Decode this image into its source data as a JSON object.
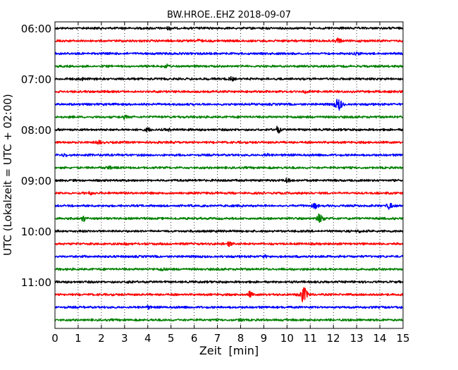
{
  "chart_data": {
    "type": "line",
    "title": "BW.HROE..EHZ 2018-09-07",
    "xlabel": "Zeit  [min]",
    "ylabel": "UTC (Lokalzeit = UTC + 02:00)",
    "xlim": [
      0,
      15
    ],
    "x_ticks": [
      "0",
      "1",
      "2",
      "3",
      "4",
      "5",
      "6",
      "7",
      "8",
      "9",
      "10",
      "11",
      "12",
      "13",
      "14",
      "15"
    ],
    "y_tick_labels": [
      "06:00",
      "07:00",
      "08:00",
      "09:00",
      "10:00",
      "11:00"
    ],
    "grid": "vertical dotted",
    "color_cycle": [
      "#000000",
      "#ff0000",
      "#0000ff",
      "#008000"
    ],
    "traces_start": "06:00",
    "trace_interval_min": 15,
    "trace_count": 24,
    "series": [
      {
        "start": "06:00",
        "events": [
          {
            "x": 4.9,
            "amp": 1.2
          }
        ]
      },
      {
        "start": "06:15",
        "events": [
          {
            "x": 6.2,
            "amp": 1.2
          },
          {
            "x": 12.2,
            "amp": 2.4
          }
        ]
      },
      {
        "start": "06:30",
        "events": [
          {
            "x": 13.0,
            "amp": 1.1
          }
        ]
      },
      {
        "start": "06:45",
        "events": [
          {
            "x": 4.8,
            "amp": 1.1
          }
        ]
      },
      {
        "start": "07:00",
        "events": [
          {
            "x": 1.1,
            "amp": 1.3
          },
          {
            "x": 7.6,
            "amp": 1.6
          }
        ]
      },
      {
        "start": "07:15",
        "events": [
          {
            "x": 10.8,
            "amp": 1.0
          }
        ]
      },
      {
        "start": "07:30",
        "events": [
          {
            "x": 12.2,
            "amp": 5.0
          }
        ]
      },
      {
        "start": "07:45",
        "events": [
          {
            "x": 3.0,
            "amp": 1.2
          }
        ]
      },
      {
        "start": "08:00",
        "events": [
          {
            "x": 4.0,
            "amp": 1.4
          },
          {
            "x": 4.9,
            "amp": 1.1
          },
          {
            "x": 9.6,
            "amp": 2.6
          }
        ]
      },
      {
        "start": "08:15",
        "events": [
          {
            "x": 1.9,
            "amp": 1.6
          }
        ]
      },
      {
        "start": "08:30",
        "events": [
          {
            "x": 0.4,
            "amp": 1.2
          },
          {
            "x": 9.1,
            "amp": 1.0
          }
        ]
      },
      {
        "start": "08:45",
        "events": [
          {
            "x": 2.3,
            "amp": 1.1
          }
        ]
      },
      {
        "start": "09:00",
        "events": [
          {
            "x": 10.0,
            "amp": 2.2
          }
        ]
      },
      {
        "start": "09:15",
        "events": [
          {
            "x": 1.5,
            "amp": 1.1
          }
        ]
      },
      {
        "start": "09:30",
        "events": [
          {
            "x": 11.2,
            "amp": 2.4
          },
          {
            "x": 14.4,
            "amp": 2.6
          }
        ]
      },
      {
        "start": "09:45",
        "events": [
          {
            "x": 1.2,
            "amp": 2.4
          },
          {
            "x": 11.4,
            "amp": 3.6
          }
        ]
      },
      {
        "start": "10:00",
        "events": [
          {
            "x": 13.1,
            "amp": 1.0
          }
        ]
      },
      {
        "start": "10:15",
        "events": [
          {
            "x": 3.0,
            "amp": 1.4
          },
          {
            "x": 7.5,
            "amp": 1.2
          }
        ]
      },
      {
        "start": "10:30",
        "events": [
          {
            "x": 9.0,
            "amp": 1.0
          }
        ]
      },
      {
        "start": "10:45",
        "events": [
          {
            "x": 4.6,
            "amp": 1.0
          }
        ]
      },
      {
        "start": "11:00",
        "events": [
          {
            "x": 3.2,
            "amp": 1.1
          }
        ]
      },
      {
        "start": "11:15",
        "events": [
          {
            "x": 8.4,
            "amp": 2.2
          },
          {
            "x": 10.7,
            "amp": 6.5
          }
        ]
      },
      {
        "start": "11:30",
        "events": [
          {
            "x": 4.0,
            "amp": 1.0
          }
        ]
      },
      {
        "start": "11:45",
        "events": [
          {
            "x": 8.0,
            "amp": 1.0
          }
        ]
      }
    ]
  }
}
